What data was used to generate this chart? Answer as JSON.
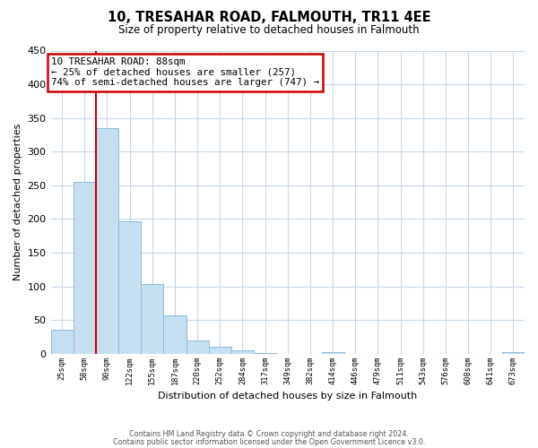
{
  "title": "10, TRESAHAR ROAD, FALMOUTH, TR11 4EE",
  "subtitle": "Size of property relative to detached houses in Falmouth",
  "xlabel": "Distribution of detached houses by size in Falmouth",
  "ylabel": "Number of detached properties",
  "bar_labels": [
    "25sqm",
    "58sqm",
    "90sqm",
    "122sqm",
    "155sqm",
    "187sqm",
    "220sqm",
    "252sqm",
    "284sqm",
    "317sqm",
    "349sqm",
    "382sqm",
    "414sqm",
    "446sqm",
    "479sqm",
    "511sqm",
    "543sqm",
    "576sqm",
    "608sqm",
    "641sqm",
    "673sqm"
  ],
  "bar_values": [
    36,
    255,
    335,
    197,
    104,
    57,
    20,
    11,
    5,
    1,
    0,
    0,
    2,
    0,
    0,
    0,
    0,
    0,
    0,
    0,
    2
  ],
  "bar_color": "#c5dff0",
  "bar_edge_color": "#8bbcda",
  "property_line_x": 2.0,
  "property_line_color": "#cc0000",
  "annotation_line1": "10 TRESAHAR ROAD: 88sqm",
  "annotation_line2": "← 25% of detached houses are smaller (257)",
  "annotation_line3": "74% of semi-detached houses are larger (747) →",
  "annotation_box_color": "#ffffff",
  "annotation_box_edge_color": "#cc0000",
  "ylim": [
    0,
    450
  ],
  "yticks": [
    0,
    50,
    100,
    150,
    200,
    250,
    300,
    350,
    400,
    450
  ],
  "footer_line1": "Contains HM Land Registry data © Crown copyright and database right 2024.",
  "footer_line2": "Contains public sector information licensed under the Open Government Licence v3.0.",
  "background_color": "#ffffff",
  "grid_color": "#c8d8e8"
}
